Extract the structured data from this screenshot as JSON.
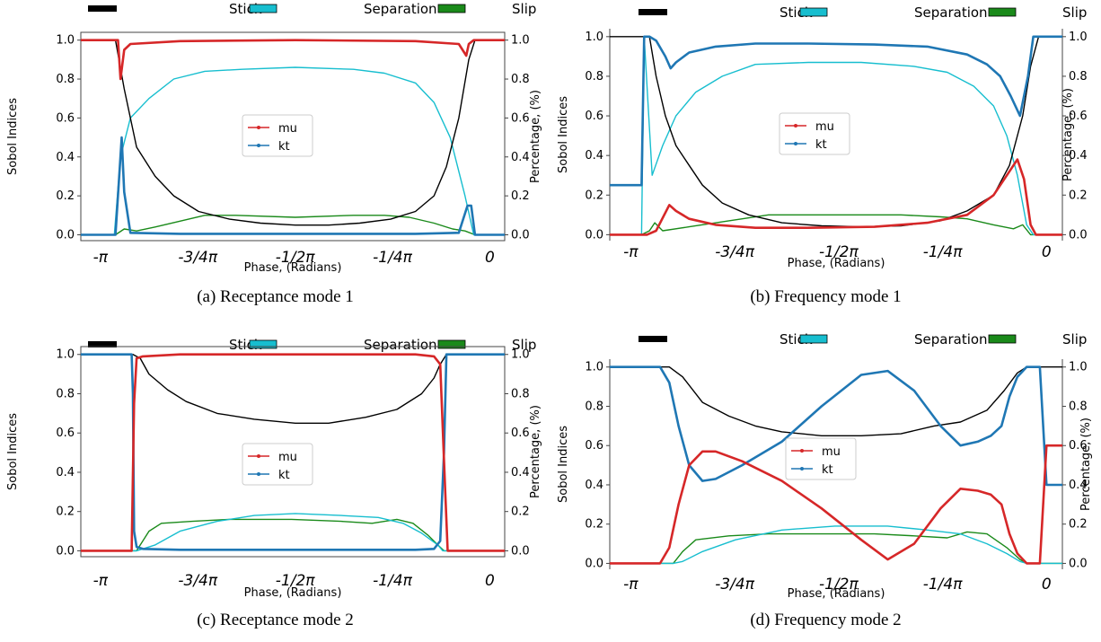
{
  "figure": {
    "top_legend": [
      {
        "label": "Stick",
        "color": "#000000"
      },
      {
        "label": "Separation",
        "color": "#17becf"
      },
      {
        "label": "Slip",
        "color": "#1a8a1a"
      }
    ],
    "colors": {
      "mu": "#d62728",
      "kt": "#1f77b4",
      "stick": "#000000",
      "separation": "#17becf",
      "slip": "#1a8a1a"
    }
  },
  "chart_data": [
    {
      "type": "line",
      "caption": "(a) Receptance mode 1",
      "xlabel": "Phase, (Radians)",
      "ylabel": "Sobol Indices",
      "ylabel_right": "Percentage, (%)",
      "xlim": [
        -3.3,
        0.12
      ],
      "ylim": [
        -0.03,
        1.04
      ],
      "xticks": [
        {
          "v": -3.1416,
          "label": "-π"
        },
        {
          "v": -2.3562,
          "label": "-3/4π"
        },
        {
          "v": -1.5708,
          "label": "-1/2π"
        },
        {
          "v": -0.7854,
          "label": "-1/4π"
        },
        {
          "v": 0,
          "label": "0"
        }
      ],
      "yticks": [
        "0.0",
        "0.2",
        "0.4",
        "0.6",
        "0.8",
        "1.0"
      ],
      "box_legend": [
        "mu",
        "kt"
      ],
      "series": [
        {
          "name": "mu",
          "x": [
            -3.3,
            -3.0,
            -2.98,
            -2.95,
            -2.9,
            -2.5,
            -1.57,
            -0.6,
            -0.25,
            -0.19,
            -0.17,
            -0.13,
            0,
            0.12
          ],
          "y": [
            1.0,
            1.0,
            0.8,
            0.95,
            0.98,
            0.995,
            1.0,
            0.995,
            0.98,
            0.92,
            0.98,
            1.0,
            1.0,
            1.0
          ]
        },
        {
          "name": "kt",
          "x": [
            -3.3,
            -3.02,
            -2.97,
            -2.95,
            -2.9,
            -2.5,
            -1.57,
            -0.6,
            -0.25,
            -0.18,
            -0.15,
            -0.12,
            0,
            0.12
          ],
          "y": [
            0.0,
            0.0,
            0.5,
            0.22,
            0.01,
            0.005,
            0.005,
            0.005,
            0.01,
            0.15,
            0.15,
            0.0,
            0.0,
            0.0
          ]
        },
        {
          "name": "Stick",
          "x": [
            -3.3,
            -3.02,
            -2.95,
            -2.85,
            -2.7,
            -2.55,
            -2.35,
            -2.1,
            -1.85,
            -1.57,
            -1.3,
            -1.05,
            -0.8,
            -0.6,
            -0.45,
            -0.35,
            -0.25,
            -0.17,
            -0.12,
            0,
            0.12
          ],
          "y": [
            1.0,
            1.0,
            0.75,
            0.45,
            0.3,
            0.2,
            0.12,
            0.08,
            0.06,
            0.05,
            0.05,
            0.06,
            0.08,
            0.12,
            0.2,
            0.35,
            0.6,
            0.9,
            1.0,
            1.0,
            1.0
          ]
        },
        {
          "name": "Separation",
          "x": [
            -3.3,
            -3.03,
            -2.98,
            -2.9,
            -2.75,
            -2.55,
            -2.3,
            -2.0,
            -1.57,
            -1.1,
            -0.85,
            -0.6,
            -0.45,
            -0.32,
            -0.2,
            -0.13,
            -0.08,
            0.12
          ],
          "y": [
            0.0,
            0.0,
            0.4,
            0.6,
            0.7,
            0.8,
            0.84,
            0.85,
            0.86,
            0.85,
            0.83,
            0.78,
            0.68,
            0.5,
            0.2,
            0.0,
            0.0,
            0.0
          ]
        },
        {
          "name": "Slip",
          "x": [
            -3.3,
            -3.02,
            -2.95,
            -2.85,
            -2.7,
            -2.5,
            -2.3,
            -2.05,
            -1.57,
            -1.1,
            -0.85,
            -0.65,
            -0.45,
            -0.3,
            -0.2,
            -0.12,
            0.12
          ],
          "y": [
            0.0,
            0.0,
            0.03,
            0.02,
            0.04,
            0.07,
            0.1,
            0.1,
            0.09,
            0.1,
            0.1,
            0.09,
            0.06,
            0.03,
            0.02,
            0.0,
            0.0
          ]
        }
      ]
    },
    {
      "type": "line",
      "caption": "(b) Frequency mode 1",
      "xlabel": "Phase, (Radians)",
      "ylabel": "Sobol Indices",
      "ylabel_right": "Percentage, (%)",
      "xlim": [
        -3.3,
        0.12
      ],
      "ylim": [
        -0.03,
        1.04
      ],
      "xticks": [
        {
          "v": -3.1416,
          "label": "-π"
        },
        {
          "v": -2.3562,
          "label": "-3/4π"
        },
        {
          "v": -1.5708,
          "label": "-1/2π"
        },
        {
          "v": -0.7854,
          "label": "-1/4π"
        },
        {
          "v": 0,
          "label": "0"
        }
      ],
      "yticks": [
        "0.0",
        "0.2",
        "0.4",
        "0.6",
        "0.8",
        "1.0"
      ],
      "box_legend": [
        "mu",
        "kt"
      ],
      "series": [
        {
          "name": "mu",
          "x": [
            -3.3,
            -3.06,
            -3.04,
            -3.02,
            -2.95,
            -2.85,
            -2.8,
            -2.7,
            -2.5,
            -2.2,
            -1.8,
            -1.3,
            -0.9,
            -0.6,
            -0.4,
            -0.28,
            -0.22,
            -0.17,
            -0.12,
            -0.08,
            0.12
          ],
          "y": [
            0.0,
            0.0,
            0.0,
            0.0,
            0.02,
            0.15,
            0.12,
            0.08,
            0.05,
            0.035,
            0.035,
            0.04,
            0.06,
            0.1,
            0.2,
            0.32,
            0.38,
            0.28,
            0.05,
            0.0,
            0.0
          ]
        },
        {
          "name": "kt",
          "x": [
            -3.3,
            -3.06,
            -3.04,
            -3.0,
            -2.95,
            -2.88,
            -2.84,
            -2.8,
            -2.7,
            -2.5,
            -2.2,
            -1.8,
            -1.3,
            -0.9,
            -0.6,
            -0.45,
            -0.35,
            -0.27,
            -0.2,
            -0.14,
            -0.1,
            0.12
          ],
          "y": [
            0.25,
            0.25,
            1.0,
            1.0,
            0.98,
            0.9,
            0.84,
            0.87,
            0.92,
            0.95,
            0.965,
            0.965,
            0.96,
            0.95,
            0.91,
            0.86,
            0.8,
            0.7,
            0.6,
            0.8,
            1.0,
            1.0
          ]
        },
        {
          "name": "Stick",
          "x": [
            -3.3,
            -3.0,
            -2.95,
            -2.88,
            -2.8,
            -2.7,
            -2.6,
            -2.45,
            -2.25,
            -2.0,
            -1.7,
            -1.4,
            -1.1,
            -0.8,
            -0.6,
            -0.4,
            -0.28,
            -0.18,
            -0.12,
            -0.06,
            0.12
          ],
          "y": [
            1.0,
            1.0,
            0.8,
            0.6,
            0.45,
            0.35,
            0.25,
            0.16,
            0.1,
            0.06,
            0.045,
            0.04,
            0.045,
            0.07,
            0.12,
            0.2,
            0.35,
            0.6,
            0.85,
            1.0,
            1.0
          ]
        },
        {
          "name": "Separation",
          "x": [
            -3.3,
            -3.06,
            -3.04,
            -2.98,
            -2.9,
            -2.8,
            -2.65,
            -2.45,
            -2.2,
            -1.8,
            -1.4,
            -1.0,
            -0.75,
            -0.55,
            -0.4,
            -0.3,
            -0.22,
            -0.15,
            -0.1,
            0.12
          ],
          "y": [
            0.0,
            0.0,
            1.0,
            0.3,
            0.45,
            0.6,
            0.72,
            0.8,
            0.86,
            0.87,
            0.87,
            0.85,
            0.82,
            0.75,
            0.65,
            0.5,
            0.3,
            0.05,
            0.0,
            0.0
          ]
        },
        {
          "name": "Slip",
          "x": [
            -3.3,
            -3.06,
            -3.0,
            -2.96,
            -2.9,
            -2.7,
            -2.4,
            -2.1,
            -1.6,
            -1.1,
            -0.8,
            -0.6,
            -0.4,
            -0.25,
            -0.18,
            -0.12,
            0.12
          ],
          "y": [
            0.0,
            0.0,
            0.02,
            0.06,
            0.02,
            0.04,
            0.07,
            0.1,
            0.1,
            0.1,
            0.09,
            0.08,
            0.05,
            0.03,
            0.05,
            0.0,
            0.0
          ]
        }
      ]
    },
    {
      "type": "line",
      "caption": "(c) Receptance mode 2",
      "xlabel": "Phase, (Radians)",
      "ylabel": "Sobol Indices",
      "ylabel_right": "Percentage, (%)",
      "xlim": [
        -3.3,
        0.12
      ],
      "ylim": [
        -0.03,
        1.04
      ],
      "xticks": [
        {
          "v": -3.1416,
          "label": "-π"
        },
        {
          "v": -2.3562,
          "label": "-3/4π"
        },
        {
          "v": -1.5708,
          "label": "-1/2π"
        },
        {
          "v": -0.7854,
          "label": "-1/4π"
        },
        {
          "v": 0,
          "label": "0"
        }
      ],
      "yticks": [
        "0.0",
        "0.2",
        "0.4",
        "0.6",
        "0.8",
        "1.0"
      ],
      "box_legend": [
        "mu",
        "kt"
      ],
      "series": [
        {
          "name": "mu",
          "x": [
            -3.3,
            -2.89,
            -2.87,
            -2.85,
            -2.8,
            -2.5,
            -1.57,
            -0.6,
            -0.45,
            -0.4,
            -0.36,
            -0.34,
            0.12
          ],
          "y": [
            0.0,
            0.0,
            0.75,
            0.98,
            0.99,
            1.0,
            1.0,
            1.0,
            0.99,
            0.95,
            0.3,
            0.0,
            0.0
          ]
        },
        {
          "name": "kt",
          "x": [
            -3.3,
            -2.89,
            -2.88,
            -2.87,
            -2.85,
            -2.8,
            -2.5,
            -1.57,
            -0.6,
            -0.45,
            -0.4,
            -0.37,
            -0.35,
            0.12
          ],
          "y": [
            1.0,
            1.0,
            0.8,
            0.1,
            0.02,
            0.01,
            0.005,
            0.005,
            0.005,
            0.01,
            0.05,
            0.5,
            1.0,
            1.0
          ]
        },
        {
          "name": "Stick",
          "x": [
            -3.3,
            -2.88,
            -2.82,
            -2.75,
            -2.6,
            -2.45,
            -2.2,
            -1.9,
            -1.57,
            -1.3,
            -1.0,
            -0.75,
            -0.55,
            -0.45,
            -0.4,
            -0.35,
            0.12
          ],
          "y": [
            1.0,
            1.0,
            0.98,
            0.9,
            0.82,
            0.76,
            0.7,
            0.67,
            0.65,
            0.65,
            0.68,
            0.72,
            0.8,
            0.88,
            0.95,
            1.0,
            1.0
          ]
        },
        {
          "name": "Separation",
          "x": [
            -3.3,
            -2.85,
            -2.8,
            -2.7,
            -2.5,
            -2.2,
            -1.9,
            -1.57,
            -1.2,
            -0.9,
            -0.7,
            -0.55,
            -0.42,
            -0.38,
            0.12
          ],
          "y": [
            0.0,
            0.0,
            0.01,
            0.03,
            0.1,
            0.15,
            0.18,
            0.19,
            0.18,
            0.17,
            0.14,
            0.09,
            0.03,
            0.0,
            0.0
          ]
        },
        {
          "name": "Slip",
          "x": [
            -3.3,
            -2.85,
            -2.8,
            -2.75,
            -2.65,
            -2.4,
            -2.1,
            -1.6,
            -1.2,
            -0.95,
            -0.75,
            -0.62,
            -0.5,
            -0.42,
            -0.37,
            0.12
          ],
          "y": [
            0.0,
            0.0,
            0.05,
            0.1,
            0.14,
            0.15,
            0.16,
            0.16,
            0.15,
            0.14,
            0.16,
            0.14,
            0.08,
            0.03,
            0.0,
            0.0
          ]
        }
      ]
    },
    {
      "type": "line",
      "caption": "(d) Frequency mode 2",
      "xlabel": "Phase, (Radians)",
      "ylabel": "Sobol Indices",
      "ylabel_right": "Percentage, (%)",
      "xlim": [
        -3.3,
        0.12
      ],
      "ylim": [
        -0.03,
        1.04
      ],
      "xticks": [
        {
          "v": -3.1416,
          "label": "-π"
        },
        {
          "v": -2.3562,
          "label": "-3/4π"
        },
        {
          "v": -1.5708,
          "label": "-1/2π"
        },
        {
          "v": -0.7854,
          "label": "-1/4π"
        },
        {
          "v": 0,
          "label": "0"
        }
      ],
      "yticks": [
        "0.0",
        "0.2",
        "0.4",
        "0.6",
        "0.8",
        "1.0"
      ],
      "box_legend": [
        "mu",
        "kt"
      ],
      "series": [
        {
          "name": "mu",
          "x": [
            -3.3,
            -2.92,
            -2.85,
            -2.78,
            -2.7,
            -2.6,
            -2.5,
            -2.3,
            -2.0,
            -1.7,
            -1.4,
            -1.2,
            -1.0,
            -0.8,
            -0.65,
            -0.52,
            -0.42,
            -0.34,
            -0.28,
            -0.22,
            -0.15,
            -0.05,
            0.0,
            0.12
          ],
          "y": [
            0.0,
            0.0,
            0.08,
            0.3,
            0.5,
            0.57,
            0.57,
            0.52,
            0.42,
            0.28,
            0.12,
            0.02,
            0.1,
            0.28,
            0.38,
            0.37,
            0.35,
            0.3,
            0.15,
            0.05,
            0.0,
            0.0,
            0.6,
            0.6
          ]
        },
        {
          "name": "kt",
          "x": [
            -3.3,
            -2.92,
            -2.85,
            -2.78,
            -2.7,
            -2.6,
            -2.5,
            -2.3,
            -2.0,
            -1.7,
            -1.4,
            -1.2,
            -1.0,
            -0.8,
            -0.65,
            -0.52,
            -0.42,
            -0.34,
            -0.28,
            -0.22,
            -0.15,
            -0.05,
            0.0,
            0.12
          ],
          "y": [
            1.0,
            1.0,
            0.92,
            0.7,
            0.5,
            0.42,
            0.43,
            0.5,
            0.62,
            0.8,
            0.96,
            0.98,
            0.88,
            0.7,
            0.6,
            0.62,
            0.65,
            0.7,
            0.85,
            0.95,
            1.0,
            1.0,
            0.4,
            0.4
          ]
        },
        {
          "name": "Stick",
          "x": [
            -3.3,
            -2.85,
            -2.75,
            -2.6,
            -2.4,
            -2.2,
            -2.0,
            -1.7,
            -1.4,
            -1.1,
            -0.85,
            -0.65,
            -0.45,
            -0.32,
            -0.22,
            -0.15,
            0.12
          ],
          "y": [
            1.0,
            1.0,
            0.95,
            0.82,
            0.75,
            0.7,
            0.67,
            0.65,
            0.65,
            0.66,
            0.7,
            0.72,
            0.78,
            0.88,
            0.97,
            1.0,
            1.0
          ]
        },
        {
          "name": "Separation",
          "x": [
            -3.3,
            -2.82,
            -2.75,
            -2.6,
            -2.35,
            -2.0,
            -1.6,
            -1.2,
            -0.9,
            -0.65,
            -0.45,
            -0.3,
            -0.2,
            -0.15,
            0.12
          ],
          "y": [
            0.0,
            0.0,
            0.01,
            0.06,
            0.12,
            0.17,
            0.19,
            0.19,
            0.17,
            0.15,
            0.1,
            0.05,
            0.01,
            0.0,
            0.0
          ]
        },
        {
          "name": "Slip",
          "x": [
            -3.3,
            -2.82,
            -2.75,
            -2.65,
            -2.4,
            -2.1,
            -1.7,
            -1.3,
            -1.0,
            -0.75,
            -0.6,
            -0.45,
            -0.3,
            -0.2,
            -0.15,
            0.12
          ],
          "y": [
            0.0,
            0.0,
            0.06,
            0.12,
            0.14,
            0.15,
            0.15,
            0.15,
            0.14,
            0.13,
            0.16,
            0.15,
            0.08,
            0.02,
            0.0,
            0.0
          ]
        }
      ]
    }
  ]
}
